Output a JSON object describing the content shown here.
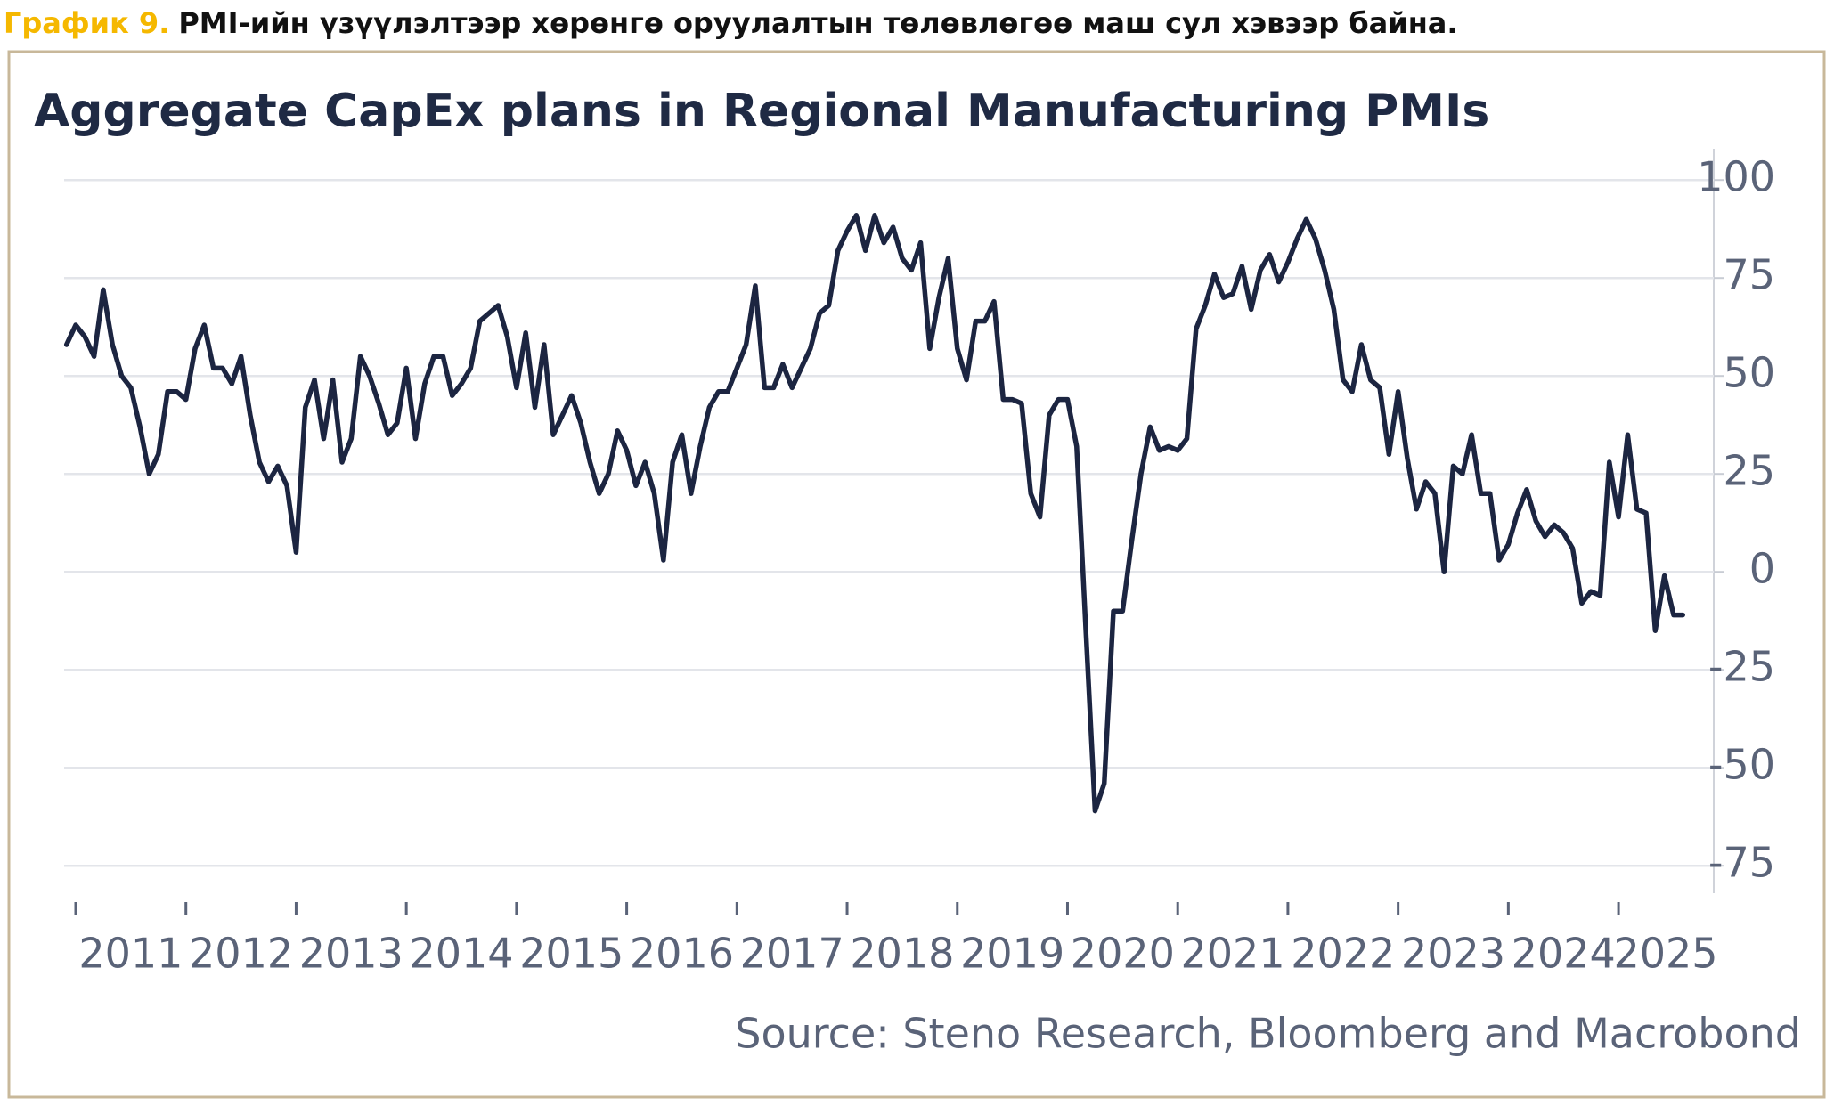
{
  "header": {
    "label": "График 9.",
    "text": "PMI-ийн үзүүлэлтээр хөрөнгө оруулалтын төлөвлөгөө маш сул хэвээр байна."
  },
  "chart_data": {
    "type": "line",
    "title": "Aggregate CapEx plans in Regional Manufacturing PMIs",
    "source": "Source: Steno Research, Bloomberg and Macrobond",
    "categories": [
      null,
      "2011",
      null,
      null,
      null,
      null,
      null,
      null,
      null,
      null,
      null,
      null,
      null,
      "2012",
      null,
      null,
      null,
      null,
      null,
      null,
      null,
      null,
      null,
      null,
      null,
      "2013",
      null,
      null,
      null,
      null,
      null,
      null,
      null,
      null,
      null,
      null,
      null,
      "2014",
      null,
      null,
      null,
      null,
      null,
      null,
      null,
      null,
      null,
      null,
      null,
      "2015",
      null,
      null,
      null,
      null,
      null,
      null,
      null,
      null,
      null,
      null,
      null,
      "2016",
      null,
      null,
      null,
      null,
      null,
      null,
      null,
      null,
      null,
      null,
      null,
      "2017",
      null,
      null,
      null,
      null,
      null,
      null,
      null,
      null,
      null,
      null,
      null,
      "2018",
      null,
      null,
      null,
      null,
      null,
      null,
      null,
      null,
      null,
      null,
      null,
      "2019",
      null,
      null,
      null,
      null,
      null,
      null,
      null,
      null,
      null,
      null,
      null,
      "2020",
      null,
      null,
      null,
      null,
      null,
      null,
      null,
      null,
      null,
      null,
      null,
      "2021",
      null,
      null,
      null,
      null,
      null,
      null,
      null,
      null,
      null,
      null,
      null,
      "2022",
      null,
      null,
      null,
      null,
      null,
      null,
      null,
      null,
      null,
      null,
      null,
      "2023",
      null,
      null,
      null,
      null,
      null,
      null,
      null,
      null,
      null,
      null,
      null,
      "2024",
      null,
      null,
      null,
      null,
      null,
      null,
      null,
      null,
      null,
      null,
      null,
      "2025",
      null,
      null,
      null,
      null,
      null,
      null,
      null
    ],
    "series": [
      {
        "name": "Aggregate CapEx plans",
        "color": "#1c2541",
        "values": [
          58,
          63,
          60,
          55,
          72,
          58,
          50,
          47,
          37,
          25,
          30,
          46,
          46,
          44,
          57,
          63,
          52,
          52,
          48,
          55,
          40,
          28,
          23,
          27,
          22,
          5,
          42,
          49,
          34,
          49,
          28,
          34,
          55,
          50,
          43,
          35,
          38,
          52,
          34,
          48,
          55,
          55,
          45,
          48,
          52,
          64,
          66,
          68,
          60,
          47,
          61,
          42,
          58,
          35,
          40,
          45,
          38,
          28,
          20,
          25,
          36,
          31,
          22,
          28,
          20,
          3,
          28,
          35,
          20,
          32,
          42,
          46,
          46,
          52,
          58,
          73,
          47,
          47,
          53,
          47,
          52,
          57,
          66,
          68,
          82,
          87,
          91,
          82,
          91,
          84,
          88,
          80,
          77,
          84,
          57,
          70,
          80,
          57,
          49,
          64,
          64,
          69,
          44,
          44,
          43,
          20,
          14,
          40,
          44,
          44,
          32,
          -15,
          -61,
          -54,
          -10,
          -10,
          8,
          25,
          37,
          31,
          32,
          31,
          34,
          62,
          68,
          76,
          70,
          71,
          78,
          67,
          77,
          81,
          74,
          79,
          85,
          90,
          85,
          77,
          67,
          49,
          46,
          58,
          49,
          47,
          30,
          46,
          29,
          16,
          23,
          20,
          0,
          27,
          25,
          35,
          20,
          20,
          3,
          7,
          15,
          21,
          13,
          9,
          12,
          10,
          6,
          -8,
          -5,
          -6,
          28,
          14,
          35,
          16,
          15,
          -15,
          -1,
          -11,
          -11
        ]
      }
    ],
    "ylim": [
      -82,
      108
    ],
    "yticks": [
      100,
      75,
      50,
      25,
      0,
      -25,
      -50,
      -75
    ],
    "grid": true
  }
}
